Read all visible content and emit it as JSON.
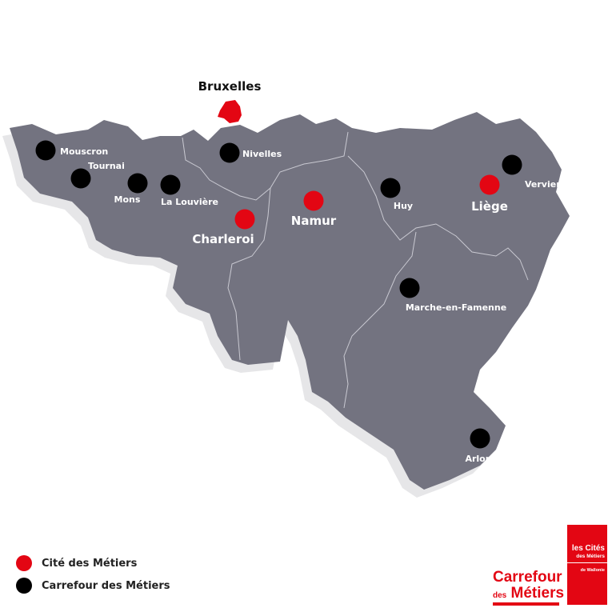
{
  "colors": {
    "region": "#737380",
    "shadow": "#e6e6e8",
    "cite": "#e30613",
    "carrefour": "#000000",
    "border": "#c9c9d1",
    "brand": "#e30613"
  },
  "map": {
    "capital": "Bruxelles",
    "places": [
      {
        "name": "Mouscron",
        "type": "carrefour"
      },
      {
        "name": "Tournai",
        "type": "carrefour"
      },
      {
        "name": "Mons",
        "type": "carrefour"
      },
      {
        "name": "La Louvière",
        "type": "carrefour"
      },
      {
        "name": "Nivelles",
        "type": "carrefour"
      },
      {
        "name": "Charleroi",
        "type": "cite"
      },
      {
        "name": "Namur",
        "type": "cite"
      },
      {
        "name": "Huy",
        "type": "carrefour"
      },
      {
        "name": "Liège",
        "type": "cite"
      },
      {
        "name": "Verviers",
        "type": "carrefour"
      },
      {
        "name": "Marche-en-Famenne",
        "type": "carrefour"
      },
      {
        "name": "Arlon",
        "type": "carrefour"
      }
    ]
  },
  "legend": [
    {
      "label": "Cité des Métiers",
      "type": "cite"
    },
    {
      "label": "Carrefour des Métiers",
      "type": "carrefour"
    }
  ],
  "logos": {
    "carrefour_line1": "Carrefour",
    "carrefour_small": "des",
    "carrefour_line2": "Métiers",
    "cites_line1": "les Cités",
    "cites_line2": "des Métiers",
    "cites_line3": "de Wallonie"
  }
}
